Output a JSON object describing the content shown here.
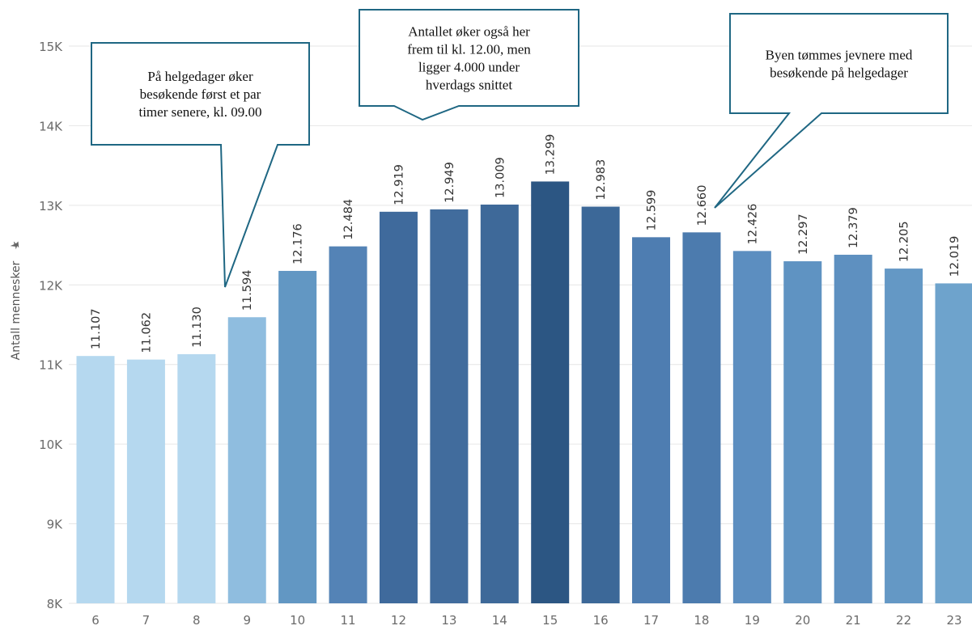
{
  "chart_data": {
    "type": "bar",
    "ylabel": "Antall mennesker",
    "xlabel": "",
    "ylim": [
      8000,
      15000
    ],
    "yticks": [
      8000,
      9000,
      10000,
      11000,
      12000,
      13000,
      14000,
      15000
    ],
    "ytick_labels": [
      "8K",
      "9K",
      "10K",
      "11K",
      "12K",
      "13K",
      "14K",
      "15K"
    ],
    "categories": [
      "6",
      "7",
      "8",
      "9",
      "10",
      "11",
      "12",
      "13",
      "14",
      "15",
      "16",
      "17",
      "18",
      "19",
      "20",
      "21",
      "22",
      "23"
    ],
    "values": [
      11107,
      11062,
      11130,
      11594,
      12176,
      12484,
      12919,
      12949,
      13009,
      13299,
      12983,
      12599,
      12660,
      12426,
      12297,
      12379,
      12205,
      12019
    ],
    "value_labels": [
      "11.107",
      "11.062",
      "11.130",
      "11.594",
      "12.176",
      "12.484",
      "12.919",
      "12.949",
      "13.009",
      "13.299",
      "12.983",
      "12.599",
      "12.660",
      "12.426",
      "12.297",
      "12.379",
      "12.205",
      "12.019"
    ],
    "bar_colors": [
      "#b5d8ef",
      "#b5d8ef",
      "#b5d8ef",
      "#8fbddf",
      "#6297c3",
      "#5483b6",
      "#3f6a9c",
      "#416c9d",
      "#3e6999",
      "#2c5683",
      "#3c6898",
      "#4e7db1",
      "#4c7bae",
      "#5c8ec0",
      "#5f93c2",
      "#5e90c0",
      "#6498c5",
      "#6ea3cc"
    ],
    "grid": true,
    "annotations": [
      {
        "lines": [
          "På helgedager øker",
          "besøkende først et par",
          "timer senere, kl. 09.00"
        ],
        "target": "9"
      },
      {
        "lines": [
          "Antallet øker også her",
          "frem til kl. 12.00, men",
          "ligger 4.000 under",
          "hverdags snittet"
        ],
        "target": "12"
      },
      {
        "lines": [
          "Byen tømmes jevnere med",
          "besøkende på helgedager"
        ],
        "target": "18"
      }
    ],
    "colors": {
      "grid": "#e6e6e6",
      "callout_border": "#1f6783",
      "pin": "#666666"
    }
  }
}
